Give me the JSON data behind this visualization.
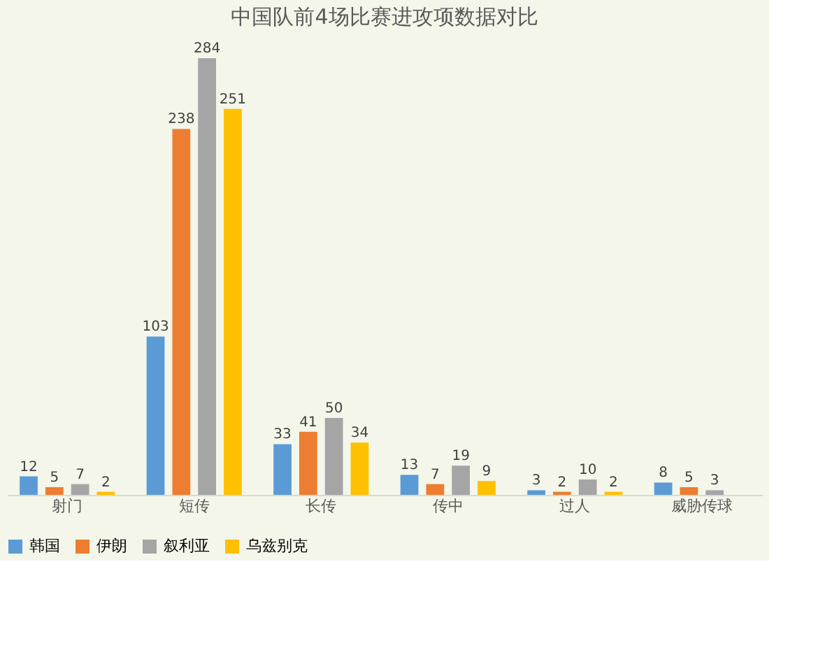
{
  "chart_data": {
    "type": "bar",
    "title": "中国队前4场比赛进攻项数据对比",
    "categories": [
      "射门",
      "短传",
      "长传",
      "传中",
      "过人",
      "威胁传球"
    ],
    "series": [
      {
        "name": "韩国",
        "color": "#5b9bd5",
        "values": [
          12,
          103,
          33,
          13,
          3,
          8
        ]
      },
      {
        "name": "伊朗",
        "color": "#ed7d31",
        "values": [
          5,
          238,
          41,
          7,
          2,
          5
        ]
      },
      {
        "name": "叙利亚",
        "color": "#a5a5a5",
        "values": [
          7,
          284,
          50,
          19,
          10,
          3
        ]
      },
      {
        "name": "乌兹别克",
        "color": "#ffc000",
        "values": [
          2,
          251,
          34,
          9,
          2,
          null
        ]
      }
    ],
    "data_labels": true,
    "legend": "bottom",
    "grid": false,
    "tick_labels": "x"
  }
}
